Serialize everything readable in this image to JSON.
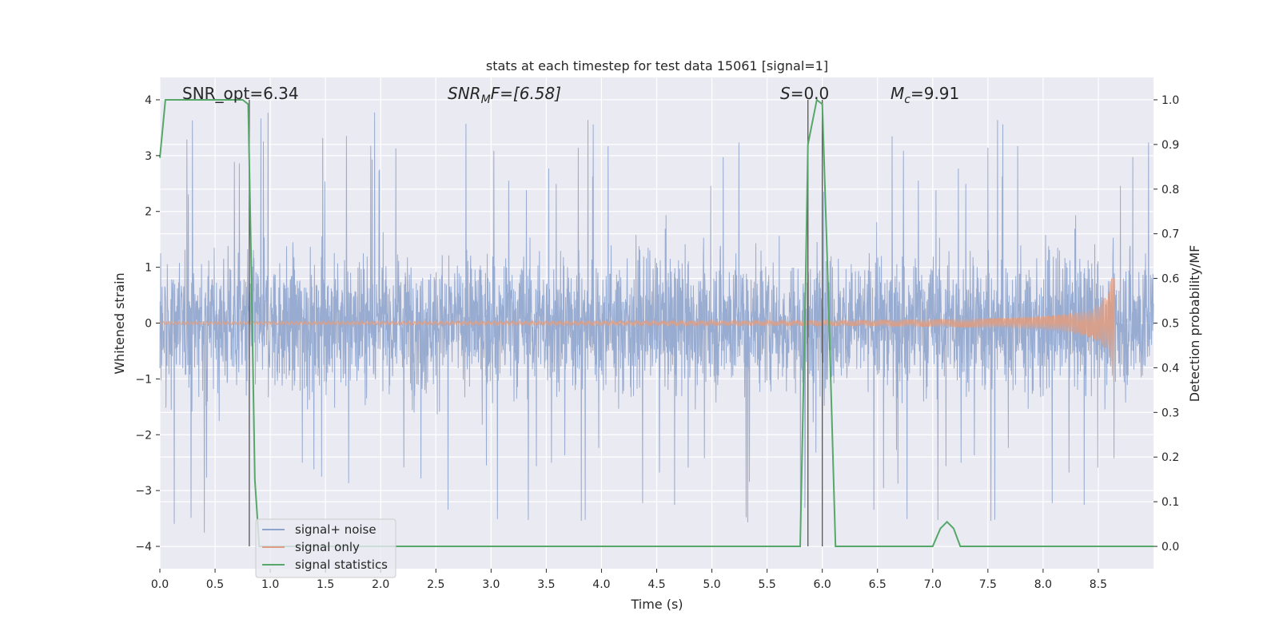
{
  "chart_data": {
    "type": "line",
    "title": "stats at each timestep for test data 15061 [signal=1]",
    "xlabel": "Time (s)",
    "ylabel_left": "Whitened strain",
    "ylabel_right": "Detection probability/MF",
    "xlim": [
      0.0,
      9.0
    ],
    "ylim_left": [
      -4.4,
      4.4
    ],
    "ylim_right": [
      -0.05,
      1.05
    ],
    "xticks": [
      "0.0",
      "0.5",
      "1.0",
      "1.5",
      "2.0",
      "2.5",
      "3.0",
      "3.5",
      "4.0",
      "4.5",
      "5.0",
      "5.5",
      "6.0",
      "6.5",
      "7.0",
      "7.5",
      "8.0",
      "8.5"
    ],
    "yticks_left": [
      "−4",
      "−3",
      "−2",
      "−1",
      "0",
      "1",
      "2",
      "3",
      "4"
    ],
    "yticks_right": [
      "0.0",
      "0.1",
      "0.2",
      "0.3",
      "0.4",
      "0.5",
      "0.6",
      "0.7",
      "0.8",
      "0.9",
      "1.0"
    ],
    "grid": true,
    "legend_position": "lower-left",
    "annotations": {
      "snr_opt": "SNR_opt=6.34",
      "snr_mf_prefix": "SNR",
      "snr_mf_sub": "M",
      "snr_mf_suffix": "F=[6.58]",
      "s_label": "S",
      "s_value": "=0.0",
      "mc_label": "M",
      "mc_sub": "c",
      "mc_value": "=9.91"
    },
    "vertical_lines_x": [
      0.81,
      5.87,
      6.0
    ],
    "series": [
      {
        "name": "signal+ noise",
        "color": "#8fa4cc",
        "description": "noisy whitened strain, spikes up to ~4"
      },
      {
        "name": "signal only",
        "color": "#dd9e85",
        "description": "chirp growing to ~0.8 amplitude near 8.65 s"
      },
      {
        "name": "signal statistics",
        "color": "#55a868",
        "x": [
          0.0,
          0.05,
          0.1,
          0.2,
          0.4,
          0.6,
          0.75,
          0.8,
          0.83,
          0.86,
          0.9,
          1.0,
          1.5,
          2.0,
          2.5,
          2.6,
          2.8,
          3.0,
          3.5,
          4.0,
          4.5,
          5.0,
          5.5,
          5.8,
          5.85,
          5.87,
          5.95,
          6.0,
          6.05,
          6.12,
          6.5,
          7.0,
          7.07,
          7.13,
          7.19,
          7.25,
          7.3,
          7.5,
          8.0,
          8.5,
          9.0
        ],
        "y": [
          0.87,
          1.0,
          1.0,
          1.0,
          1.0,
          1.0,
          1.0,
          0.99,
          0.6,
          0.15,
          0.0,
          0.0,
          0.0,
          0.0,
          0.0,
          0.0,
          0.0,
          0.0,
          0.0,
          0.0,
          0.0,
          0.0,
          0.0,
          0.0,
          0.6,
          0.9,
          1.0,
          0.99,
          0.6,
          0.0,
          0.0,
          0.0,
          0.04,
          0.055,
          0.04,
          0.0,
          0.0,
          0.0,
          0.0,
          0.0,
          0.0
        ]
      }
    ]
  }
}
